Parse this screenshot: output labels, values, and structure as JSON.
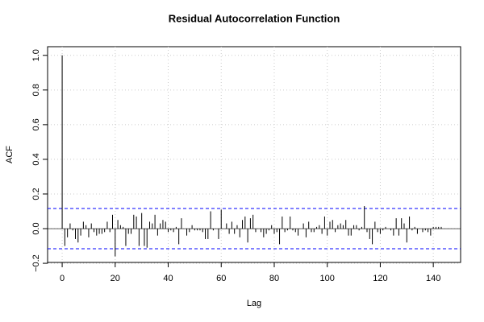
{
  "chart_data": {
    "type": "acf",
    "title": "Residual Autocorrelation Function",
    "x_label": "Lag",
    "y_label": "ACF",
    "x": [
      0,
      1,
      2,
      3,
      4,
      5,
      6,
      7,
      8,
      9,
      10,
      11,
      12,
      13,
      14,
      15,
      16,
      17,
      18,
      19,
      20,
      21,
      22,
      23,
      24,
      25,
      26,
      27,
      28,
      29,
      30,
      31,
      32,
      33,
      34,
      35,
      36,
      37,
      38,
      39,
      40,
      41,
      42,
      43,
      44,
      45,
      46,
      47,
      48,
      49,
      50,
      51,
      52,
      53,
      54,
      55,
      56,
      57,
      58,
      59,
      60,
      61,
      62,
      63,
      64,
      65,
      66,
      67,
      68,
      69,
      70,
      71,
      72,
      73,
      74,
      75,
      76,
      77,
      78,
      79,
      80,
      81,
      82,
      83,
      84,
      85,
      86,
      87,
      88,
      89,
      90,
      91,
      92,
      93,
      94,
      95,
      96,
      97,
      98,
      99,
      100,
      101,
      102,
      103,
      104,
      105,
      106,
      107,
      108,
      109,
      110,
      111,
      112,
      113,
      114,
      115,
      116,
      117,
      118,
      119,
      120,
      121,
      122,
      123,
      124,
      125,
      126,
      127,
      128,
      129,
      130,
      131,
      132,
      133,
      134,
      135,
      136,
      137,
      138,
      139,
      140,
      141,
      142,
      143,
      144
    ],
    "values": [
      1.0,
      -0.1,
      -0.05,
      0.03,
      -0.01,
      -0.06,
      -0.08,
      -0.04,
      0.04,
      0.02,
      -0.05,
      0.03,
      -0.02,
      -0.04,
      -0.03,
      -0.03,
      -0.02,
      0.04,
      -0.02,
      0.08,
      -0.16,
      0.05,
      0.02,
      0.01,
      -0.1,
      -0.03,
      -0.03,
      0.08,
      0.07,
      -0.1,
      0.09,
      -0.1,
      -0.11,
      0.04,
      0.03,
      0.08,
      -0.04,
      0.03,
      0.05,
      0.04,
      -0.02,
      -0.01,
      -0.02,
      0.01,
      -0.09,
      0.06,
      0.0,
      -0.04,
      -0.02,
      0.02,
      -0.01,
      -0.01,
      -0.01,
      -0.02,
      -0.06,
      -0.06,
      0.1,
      -0.01,
      0.0,
      -0.06,
      0.11,
      0.0,
      0.03,
      -0.03,
      0.04,
      -0.03,
      0.02,
      -0.05,
      0.05,
      0.07,
      -0.08,
      0.06,
      0.08,
      -0.02,
      0.0,
      -0.02,
      -0.05,
      -0.03,
      -0.01,
      0.02,
      -0.03,
      -0.02,
      -0.09,
      0.07,
      -0.02,
      -0.01,
      0.07,
      -0.01,
      -0.02,
      -0.04,
      0.0,
      0.03,
      -0.05,
      0.04,
      -0.02,
      -0.02,
      0.01,
      0.02,
      -0.03,
      0.07,
      -0.04,
      0.04,
      0.05,
      -0.02,
      0.02,
      0.03,
      0.02,
      0.05,
      -0.04,
      -0.04,
      0.02,
      0.02,
      -0.01,
      0.01,
      0.13,
      -0.02,
      -0.06,
      -0.09,
      0.04,
      -0.02,
      -0.03,
      -0.01,
      0.01,
      0.0,
      -0.01,
      -0.04,
      0.06,
      -0.04,
      0.06,
      0.03,
      -0.08,
      0.07,
      -0.01,
      0.01,
      -0.03,
      0.0,
      -0.02,
      -0.01,
      -0.02,
      -0.04,
      0.01,
      0.01,
      0.01,
      0.01,
      0.0
    ],
    "color": "#000000",
    "conf_limits": [
      0.116,
      -0.116
    ],
    "conf_color": "#0000ff",
    "xlim": [
      -5.5,
      150.3
    ],
    "xticks": [
      0,
      20,
      40,
      60,
      80,
      100,
      120,
      140
    ],
    "ylim": [
      -0.195,
      1.05
    ],
    "yticks": [
      {
        "value": -0.2,
        "label": "−0.2"
      },
      {
        "value": 0,
        "label": "0.0"
      },
      {
        "value": 0.2,
        "label": "0.2"
      },
      {
        "value": 0.4,
        "label": "0.4"
      },
      {
        "value": 0.6,
        "label": "0.6"
      },
      {
        "value": 0.8,
        "label": "0.8"
      },
      {
        "value": 1.0,
        "label": "1.0"
      }
    ],
    "grid": true
  }
}
